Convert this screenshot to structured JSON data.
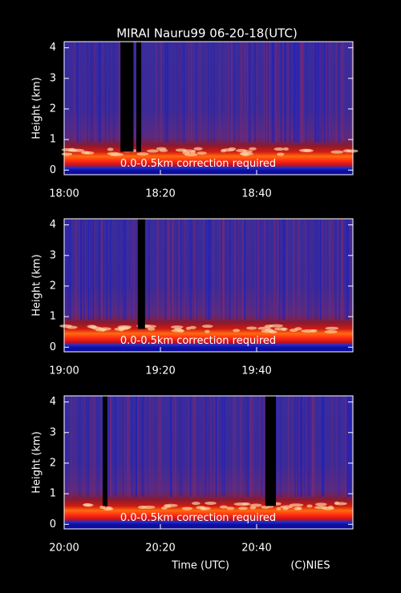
{
  "title": "MIRAI Nauru99 06-20-18(UTC)",
  "chart_data": [
    {
      "type": "heatmap",
      "ylabel": "Height (km)",
      "annotation": "0.0-0.5km correction required",
      "ylim": [
        -0.15,
        4.2
      ],
      "yticks": [
        0,
        1,
        2,
        3,
        4
      ],
      "xlim": [
        0,
        60
      ],
      "xticks": [
        {
          "value": 0,
          "label": "18:00"
        },
        {
          "value": 20,
          "label": "18:20"
        },
        {
          "value": 40,
          "label": "18:40"
        }
      ]
    },
    {
      "type": "heatmap",
      "ylabel": "Height (km)",
      "annotation": "0.0-0.5km correction required",
      "ylim": [
        -0.15,
        4.2
      ],
      "yticks": [
        0,
        1,
        2,
        3,
        4
      ],
      "xlim": [
        0,
        60
      ],
      "xticks": [
        {
          "value": 0,
          "label": "19:00"
        },
        {
          "value": 20,
          "label": "19:20"
        },
        {
          "value": 40,
          "label": "19:40"
        }
      ]
    },
    {
      "type": "heatmap",
      "ylabel": "Height (km)",
      "annotation": "0.0-0.5km correction required",
      "ylim": [
        -0.15,
        4.2
      ],
      "yticks": [
        0,
        1,
        2,
        3,
        4
      ],
      "xlim": [
        0,
        60
      ],
      "xticks": [
        {
          "value": 0,
          "label": "20:00"
        },
        {
          "value": 20,
          "label": "20:20"
        },
        {
          "value": 40,
          "label": "20:40"
        }
      ]
    }
  ],
  "xlabel": "Time (UTC)",
  "credit": "(C)NIES"
}
